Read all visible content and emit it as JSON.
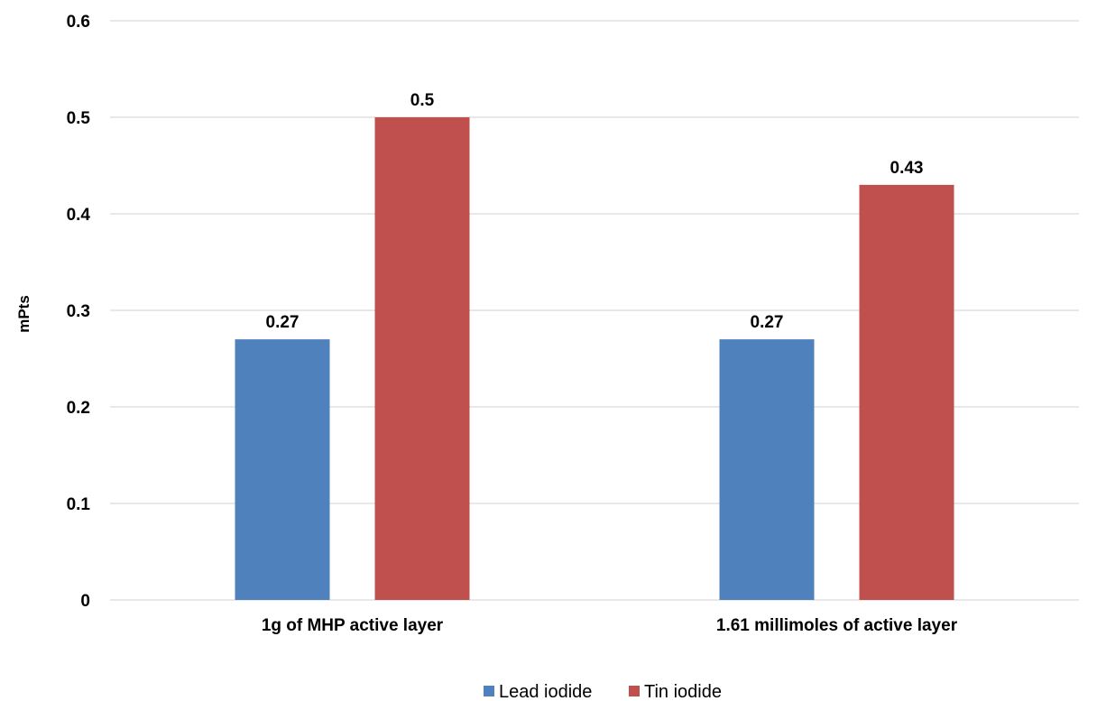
{
  "chart_data": {
    "type": "bar",
    "title": "",
    "xlabel": "",
    "ylabel": "mPts",
    "ylim": [
      0,
      0.6
    ],
    "yticks": [
      "0",
      "0.1",
      "0.2",
      "0.3",
      "0.4",
      "0.5",
      "0.6"
    ],
    "categories": [
      "1g of MHP active layer",
      "1.61 millimoles of active layer"
    ],
    "series": [
      {
        "name": "Lead iodide",
        "color": "#4f81bd",
        "values": [
          0.27,
          0.27
        ],
        "labels": [
          "0.27",
          "0.27"
        ]
      },
      {
        "name": "Tin iodide",
        "color": "#c0504d",
        "values": [
          0.5,
          0.43
        ],
        "labels": [
          "0.5",
          "0.43"
        ]
      }
    ],
    "grid": true,
    "legend": "bottom"
  }
}
